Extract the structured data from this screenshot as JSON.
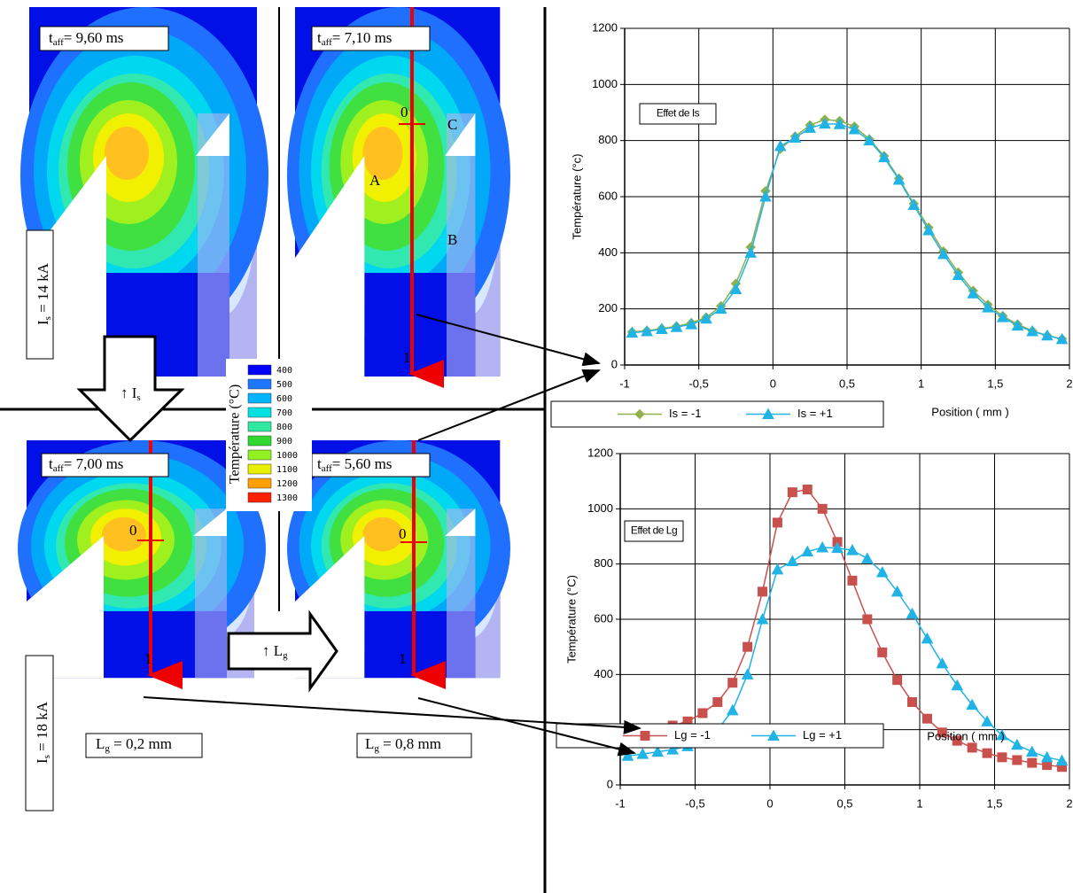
{
  "chart_data": [
    {
      "type": "line",
      "y_label": "Température (°c)",
      "x_label": "Position ( mm )",
      "annotation": "Effet de Is",
      "xlim": [
        -1,
        2
      ],
      "ylim": [
        0,
        1200
      ],
      "xticks": [
        -1,
        {
          "value": -0.5,
          "label": "-0,5"
        },
        0,
        {
          "value": 0.5,
          "label": "0,5"
        },
        1,
        {
          "value": 1.5,
          "label": "1,5"
        },
        2
      ],
      "yticks": [
        0,
        200,
        400,
        600,
        800,
        1000,
        1200
      ],
      "grid": true,
      "legend": "bottom",
      "x": [
        -0.95,
        -0.85,
        -0.75,
        -0.65,
        -0.55,
        -0.45,
        -0.35,
        -0.25,
        -0.15,
        -0.05,
        0.05,
        0.15,
        0.25,
        0.35,
        0.45,
        0.55,
        0.65,
        0.75,
        0.85,
        0.95,
        1.05,
        1.15,
        1.25,
        1.35,
        1.45,
        1.55,
        1.65,
        1.75,
        1.85,
        1.95
      ],
      "series": [
        {
          "name": "Is = -1",
          "color": "#8fb04a",
          "marker": "diamond",
          "values": [
            118,
            122,
            130,
            138,
            150,
            170,
            210,
            290,
            420,
            620,
            770,
            815,
            855,
            875,
            870,
            850,
            805,
            745,
            665,
            575,
            490,
            405,
            330,
            265,
            215,
            175,
            145,
            122,
            105,
            93
          ]
        },
        {
          "name": "Is = +1",
          "color": "#21b3e6",
          "marker": "triangle",
          "values": [
            115,
            120,
            128,
            135,
            145,
            165,
            200,
            270,
            400,
            600,
            780,
            810,
            845,
            860,
            858,
            840,
            800,
            740,
            660,
            570,
            480,
            395,
            320,
            255,
            205,
            170,
            140,
            120,
            105,
            92
          ]
        }
      ]
    },
    {
      "type": "line",
      "y_label": "Température (°C)",
      "x_label": "Position ( mm )",
      "annotation": "Effet de Lg",
      "xlim": [
        -1,
        2
      ],
      "ylim": [
        0,
        1200
      ],
      "xticks": [
        -1,
        {
          "value": -0.5,
          "label": "-0,5"
        },
        0,
        {
          "value": 0.5,
          "label": "0,5"
        },
        1,
        {
          "value": 1.5,
          "label": "1,5"
        },
        2
      ],
      "yticks": [
        0,
        200,
        400,
        600,
        800,
        1000,
        1200
      ],
      "grid": true,
      "legend": "bottom",
      "x": [
        -0.95,
        -0.85,
        -0.75,
        -0.65,
        -0.55,
        -0.45,
        -0.35,
        -0.25,
        -0.15,
        -0.05,
        0.05,
        0.15,
        0.25,
        0.35,
        0.45,
        0.55,
        0.65,
        0.75,
        0.85,
        0.95,
        1.05,
        1.15,
        1.25,
        1.35,
        1.45,
        1.55,
        1.65,
        1.75,
        1.85,
        1.95
      ],
      "series": [
        {
          "name": "Lg = -1",
          "color": "#c8504d",
          "marker": "square",
          "values": [
            180,
            190,
            200,
            215,
            230,
            260,
            300,
            370,
            500,
            700,
            950,
            1060,
            1070,
            1000,
            880,
            740,
            600,
            480,
            380,
            300,
            240,
            190,
            160,
            135,
            115,
            100,
            90,
            80,
            72,
            65
          ]
        },
        {
          "name": "Lg = +1",
          "color": "#21b3e6",
          "marker": "triangle",
          "values": [
            105,
            112,
            120,
            128,
            140,
            160,
            200,
            270,
            400,
            600,
            780,
            810,
            845,
            860,
            858,
            850,
            820,
            770,
            700,
            620,
            530,
            440,
            360,
            290,
            230,
            180,
            145,
            120,
            100,
            88
          ]
        }
      ]
    }
  ],
  "times": [
    {
      "symbol": "t",
      "sub": "aff",
      "text": "= 9,60 ms"
    },
    {
      "symbol": "t",
      "sub": "aff",
      "text": "= 7,10 ms"
    },
    {
      "symbol": "t",
      "sub": "aff",
      "text": "= 7,00 ms"
    },
    {
      "symbol": "t",
      "sub": "aff",
      "text": "= 5,60 ms"
    }
  ],
  "currents": [
    {
      "symbol": "I",
      "sub": "s",
      "text": " = 14 kA"
    },
    {
      "symbol": "I",
      "sub": "s",
      "text": " = 18 kA"
    }
  ],
  "gaps": [
    {
      "symbol": "L",
      "sub": "g",
      "text": " = 0,2 mm"
    },
    {
      "symbol": "L",
      "sub": "g",
      "text": " = 0,8 mm"
    }
  ],
  "arrows": [
    {
      "symbol": "↑ I",
      "sub": "s"
    },
    {
      "symbol": "↑ L",
      "sub": "g"
    }
  ],
  "line_ends": [
    "0",
    "1"
  ],
  "points": [
    "A",
    "B",
    "C"
  ],
  "colorbar": {
    "title": "Température (°C)",
    "levels": [
      400,
      500,
      600,
      700,
      800,
      900,
      1000,
      1100,
      1200,
      1300
    ],
    "colors": [
      "#0000ff",
      "#1e78ff",
      "#00b4ff",
      "#00e0e0",
      "#30e8a0",
      "#30d830",
      "#90f020",
      "#e8f000",
      "#ffa000",
      "#ff2000"
    ]
  }
}
